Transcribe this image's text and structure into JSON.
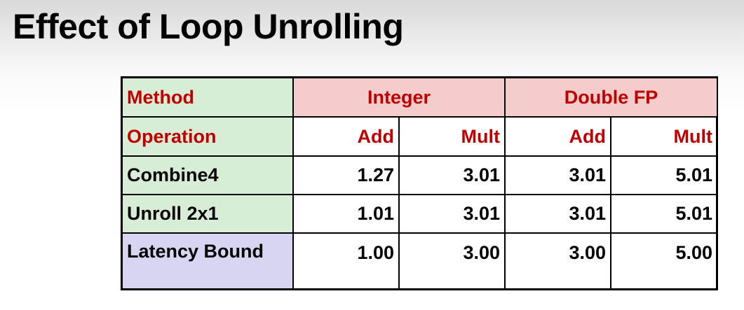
{
  "slide": {
    "title": "Effect of Loop Unrolling"
  },
  "table": {
    "method_label": "Method",
    "groups": [
      "Integer",
      "Double FP"
    ],
    "operation_label": "Operation",
    "operations": [
      "Add",
      "Mult",
      "Add",
      "Mult"
    ],
    "rows": [
      {
        "label": "Combine4",
        "values": [
          "1.27",
          "3.01",
          "3.01",
          "5.01"
        ]
      },
      {
        "label": "Unroll 2x1",
        "values": [
          "1.01",
          "3.01",
          "3.01",
          "5.01"
        ]
      },
      {
        "label": "Latency Bound",
        "values": [
          "1.00",
          "3.00",
          "3.00",
          "5.00"
        ]
      }
    ],
    "colors": {
      "header_text": "#c00000",
      "label_bg": "#d8edd6",
      "group_bg": "#f4cccc",
      "bound_bg": "#d7d5f2"
    }
  }
}
